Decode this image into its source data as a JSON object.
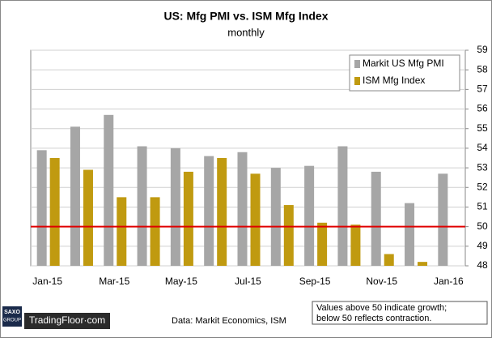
{
  "chart_data": {
    "type": "bar",
    "title": "US: Mfg PMI vs. ISM Mfg Index",
    "subtitle": "monthly",
    "categories": [
      "Jan-15",
      null,
      "Mar-15",
      null,
      "May-15",
      null,
      "Jul-15",
      null,
      "Sep-15",
      null,
      "Nov-15",
      null,
      "Jan-16"
    ],
    "series": [
      {
        "name": "Markit US Mfg PMI",
        "color": "#a6a6a6",
        "values": [
          53.9,
          55.1,
          55.7,
          54.1,
          54.0,
          53.6,
          53.8,
          53.0,
          53.1,
          54.1,
          52.8,
          51.2,
          52.7
        ]
      },
      {
        "name": "ISM Mfg Index",
        "color": "#c09a10",
        "values": [
          53.5,
          52.9,
          51.5,
          51.5,
          52.8,
          53.5,
          52.7,
          51.1,
          50.2,
          50.1,
          48.6,
          48.2,
          null
        ]
      }
    ],
    "ylim": [
      48,
      59
    ],
    "yticks": [
      48,
      49,
      50,
      51,
      52,
      53,
      54,
      55,
      56,
      57,
      58,
      59
    ],
    "grid": true,
    "legend": "top-right",
    "reference_line": {
      "value": 50,
      "color": "#e00000"
    },
    "source": "Data: Markit Economics, ISM",
    "note": [
      "Values above 50 indicate growth;",
      "below 50 reflects contraction."
    ],
    "logo": {
      "group": [
        "SAXO",
        "GROUP"
      ],
      "brand": "TradingFloor·com"
    }
  }
}
